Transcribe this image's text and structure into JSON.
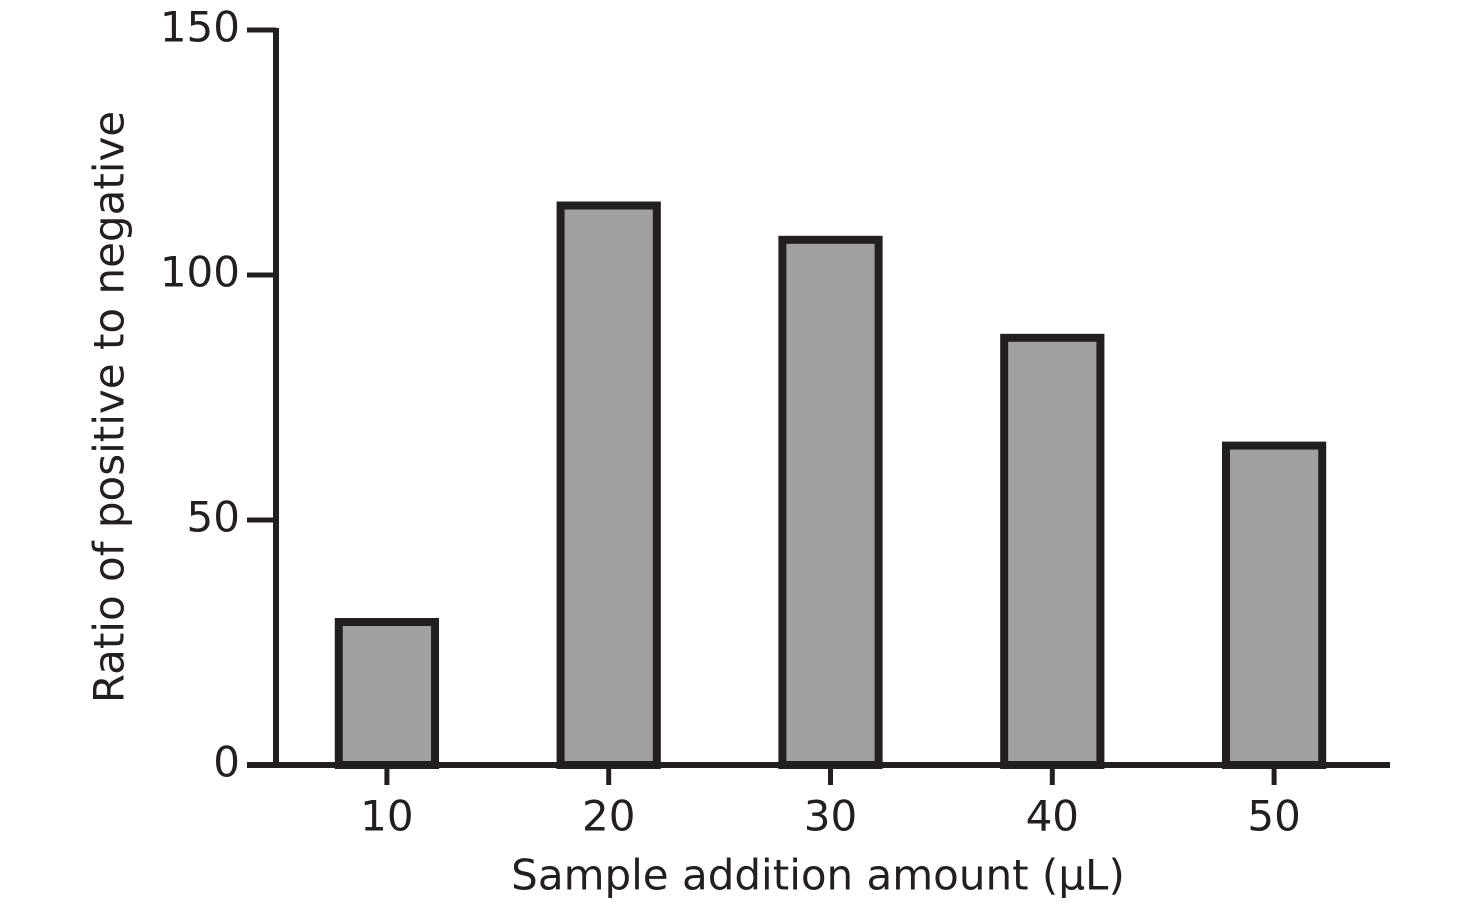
{
  "chart_data": {
    "type": "bar",
    "x_label": "Sample addition amount (μL)",
    "y_label": "Ratio of positive to negative",
    "categories": [
      "10",
      "20",
      "30",
      "40",
      "50"
    ],
    "values": [
      30,
      115,
      108,
      88,
      66
    ],
    "color": "#a0a0a0",
    "ylim": [
      0,
      150
    ],
    "yticks": [
      0,
      50,
      100,
      150
    ],
    "grid": false
  }
}
